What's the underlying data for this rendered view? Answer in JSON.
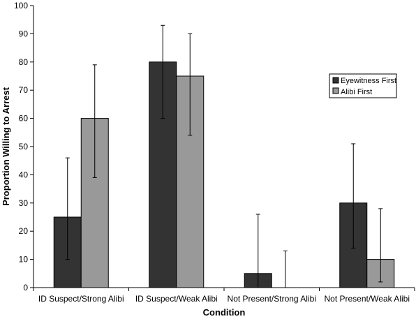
{
  "chart_data": {
    "type": "bar",
    "title": "",
    "xlabel": "Condition",
    "ylabel": "Proportion Willing to Arrest",
    "ylim": [
      0,
      100
    ],
    "yticks": [
      0,
      10,
      20,
      30,
      40,
      50,
      60,
      70,
      80,
      90,
      100
    ],
    "grid": false,
    "legend_position": "right",
    "categories": [
      "ID Suspect/Strong Alibi",
      "ID Suspect/Weak Alibi",
      "Not Present/Strong Alibi",
      "Not Present/Weak Alibi"
    ],
    "series": [
      {
        "name": "Eyewitness First",
        "color": "#333333",
        "values": [
          25,
          80,
          5,
          30
        ],
        "error_low": [
          10,
          60,
          0,
          14
        ],
        "error_high": [
          46,
          93,
          26,
          51
        ]
      },
      {
        "name": "Alibi First",
        "color": "#999999",
        "values": [
          60,
          75,
          0,
          10
        ],
        "error_low": [
          39,
          54,
          0,
          2
        ],
        "error_high": [
          79,
          90,
          13,
          28
        ]
      }
    ]
  }
}
